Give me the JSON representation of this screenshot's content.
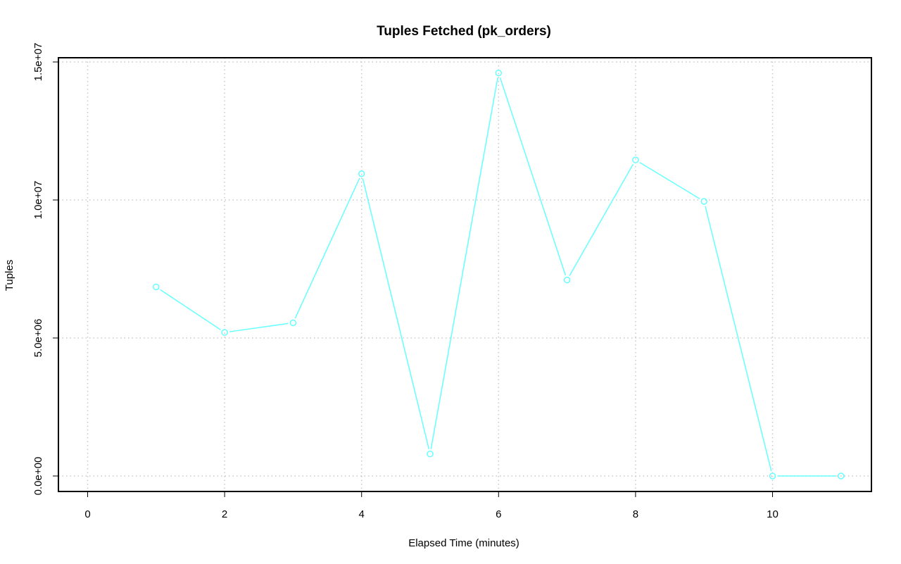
{
  "chart_data": {
    "type": "line",
    "title": "Tuples Fetched (pk_orders)",
    "xlabel": "Elapsed Time (minutes)",
    "ylabel": "Tuples",
    "xlim": [
      0,
      11
    ],
    "ylim": [
      0,
      15000000
    ],
    "xticks": [
      0,
      2,
      4,
      6,
      8,
      10
    ],
    "xtick_labels": [
      "0",
      "2",
      "4",
      "6",
      "8",
      "10"
    ],
    "yticks": [
      0,
      5000000,
      10000000,
      15000000
    ],
    "ytick_labels": [
      "0.0e+00",
      "5.0e+06",
      "1.0e+07",
      "1.5e+07"
    ],
    "grid": true,
    "series": [
      {
        "color": "#66ffff",
        "marker": "circle",
        "x": [
          1,
          2,
          3,
          4,
          5,
          6,
          7,
          8,
          9,
          10,
          11
        ],
        "y": [
          6850000,
          5200000,
          5550000,
          10950000,
          800000,
          14600000,
          7100000,
          11450000,
          9950000,
          0,
          0
        ]
      }
    ]
  }
}
